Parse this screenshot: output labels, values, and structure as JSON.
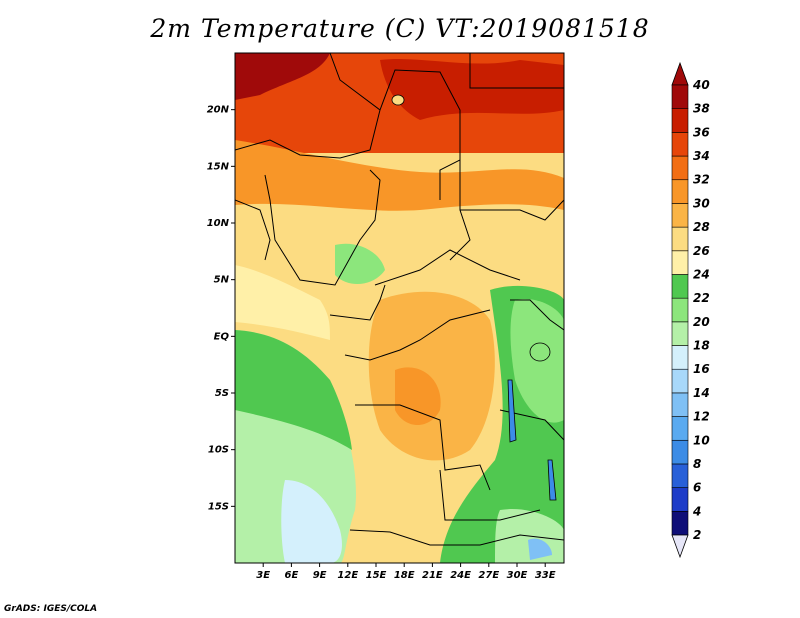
{
  "title": "2m Temperature (C) VT:2019081518",
  "credit": "GrADS: IGES/COLA",
  "map": {
    "lon_range": [
      0,
      35
    ],
    "lat_range": [
      -20,
      25
    ],
    "x_ticks": [
      {
        "value": 3,
        "label": "3E"
      },
      {
        "value": 6,
        "label": "6E"
      },
      {
        "value": 9,
        "label": "9E"
      },
      {
        "value": 12,
        "label": "12E"
      },
      {
        "value": 15,
        "label": "15E"
      },
      {
        "value": 18,
        "label": "18E"
      },
      {
        "value": 21,
        "label": "21E"
      },
      {
        "value": 24,
        "label": "24E"
      },
      {
        "value": 27,
        "label": "27E"
      },
      {
        "value": 30,
        "label": "30E"
      },
      {
        "value": 33,
        "label": "33E"
      }
    ],
    "y_ticks": [
      {
        "value": 20,
        "label": "20N"
      },
      {
        "value": 15,
        "label": "15N"
      },
      {
        "value": 10,
        "label": "10N"
      },
      {
        "value": 5,
        "label": "5N"
      },
      {
        "value": 0,
        "label": "EQ"
      },
      {
        "value": -5,
        "label": "5S"
      },
      {
        "value": -10,
        "label": "10S"
      },
      {
        "value": -15,
        "label": "15S"
      }
    ]
  },
  "colorbar": {
    "levels": [
      2,
      4,
      6,
      8,
      10,
      12,
      14,
      16,
      18,
      20,
      22,
      24,
      26,
      28,
      30,
      32,
      34,
      36,
      38,
      40
    ],
    "labels": [
      "2",
      "4",
      "6",
      "8",
      "10",
      "12",
      "14",
      "16",
      "18",
      "20",
      "22",
      "24",
      "26",
      "28",
      "30",
      "32",
      "34",
      "36",
      "38",
      "40"
    ],
    "colors": [
      "#0f0f78",
      "#1e3cc8",
      "#2860d8",
      "#3c8ce6",
      "#5aaaf0",
      "#7fc0f5",
      "#a8d8fa",
      "#d4f0fc",
      "#b4f0a8",
      "#8ce67c",
      "#50c850",
      "#fff0a8",
      "#fcdc82",
      "#fab446",
      "#f89628",
      "#f26e14",
      "#e6460a",
      "#c81e00",
      "#a00a0a"
    ],
    "low_color": "#e6e6f8",
    "high_color": "#a00a0a"
  },
  "colors": {
    "ocean_south": "#b4f0a8",
    "ocean_coast": "#50c850",
    "cold_current": "#d4f0fc",
    "sahara": "#e6460a",
    "sahel": "#f89628",
    "savanna": "#fcdc82",
    "congo": "#fab446",
    "rift": "#50c850"
  }
}
